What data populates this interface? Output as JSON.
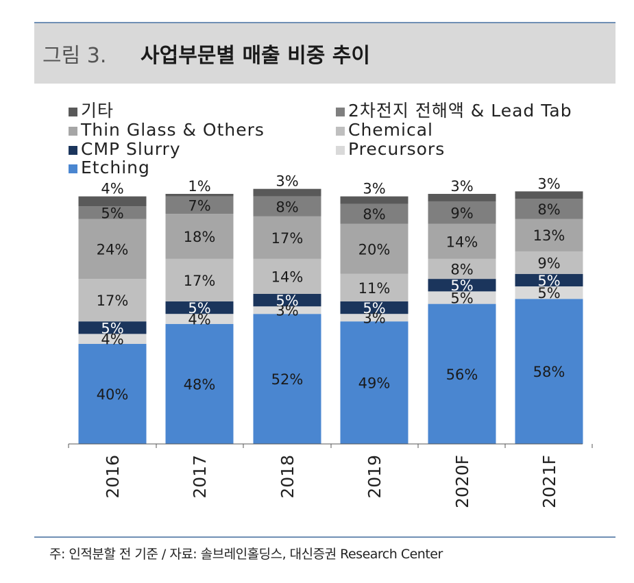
{
  "figure": {
    "label": "그림 3.",
    "title": "사업부문별 매출 비중 추이"
  },
  "footnote": "주: 인적분할 전 기준 / 자료: 솔브레인홀딩스, 대신증권 Research Center",
  "chart_data": {
    "type": "bar",
    "stacked": true,
    "title": "사업부문별 매출 비중 추이",
    "categories": [
      "2016",
      "2017",
      "2018",
      "2019",
      "2020F",
      "2021F"
    ],
    "ylim": [
      0,
      100
    ],
    "xlabel": "",
    "ylabel": "",
    "series": [
      {
        "name": "Etching",
        "color": "#4a86d0",
        "text_color": "#1a1a1a",
        "values": [
          40,
          48,
          52,
          49,
          56,
          58
        ]
      },
      {
        "name": "Precursors",
        "color": "#d9d9d9",
        "text_color": "#1a1a1a",
        "values": [
          4,
          4,
          3,
          3,
          5,
          5
        ]
      },
      {
        "name": "CMP Slurry",
        "color": "#1b355c",
        "text_color": "#ffffff",
        "values": [
          5,
          5,
          5,
          5,
          5,
          5
        ]
      },
      {
        "name": "Chemical",
        "color": "#bfbfbf",
        "text_color": "#1a1a1a",
        "values": [
          17,
          17,
          14,
          11,
          8,
          9
        ]
      },
      {
        "name": "Thin Glass & Others",
        "color": "#a6a6a6",
        "text_color": "#1a1a1a",
        "values": [
          24,
          18,
          17,
          20,
          14,
          13
        ]
      },
      {
        "name": "2차전지 전해액 & Lead Tab",
        "color": "#7f7f7f",
        "text_color": "#1a1a1a",
        "values": [
          5,
          7,
          8,
          8,
          9,
          8
        ]
      },
      {
        "name": "기타",
        "color": "#595959",
        "text_color": "#1a1a1a",
        "values": [
          4,
          1,
          3,
          3,
          3,
          3
        ]
      }
    ],
    "legend": {
      "position": "top",
      "entries": [
        {
          "name": "기타",
          "color": "#595959"
        },
        {
          "name": "2차전지 전해액 & Lead Tab",
          "color": "#7f7f7f"
        },
        {
          "name": "Thin Glass & Others",
          "color": "#a6a6a6"
        },
        {
          "name": "Chemical",
          "color": "#bfbfbf"
        },
        {
          "name": "CMP Slurry",
          "color": "#1b355c"
        },
        {
          "name": "Precursors",
          "color": "#d9d9d9"
        },
        {
          "name": "Etching",
          "color": "#4a86d0"
        }
      ]
    }
  }
}
